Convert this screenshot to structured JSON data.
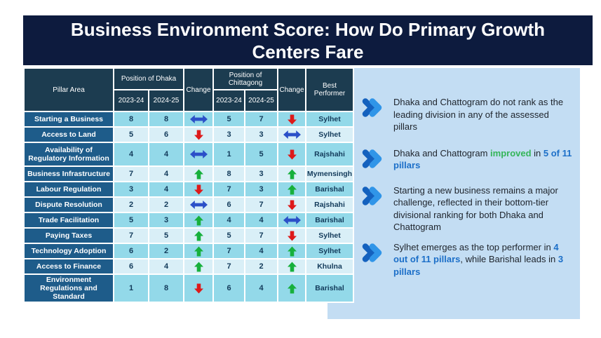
{
  "slide": {
    "title": "Business Environment Score: How Do Primary Growth Centers Fare"
  },
  "table": {
    "headers": {
      "pillar_area": "Pillar Area",
      "dhaka_group": "Position of Dhaka",
      "chittagong_group": "Position of Chittagong",
      "change": "Change",
      "best_performer": "Best Performer",
      "year_1": "2023-24",
      "year_2": "2024-25"
    },
    "rows": [
      {
        "pillar": "Starting a Business",
        "dhaka_2023_24": "8",
        "dhaka_2024_25": "8",
        "dhaka_change": "same",
        "chittagong_2023_24": "5",
        "chittagong_2024_25": "7",
        "chittagong_change": "down",
        "best_performer": "Sylhet"
      },
      {
        "pillar": "Access to Land",
        "dhaka_2023_24": "5",
        "dhaka_2024_25": "6",
        "dhaka_change": "down",
        "chittagong_2023_24": "3",
        "chittagong_2024_25": "3",
        "chittagong_change": "same",
        "best_performer": "Sylhet"
      },
      {
        "pillar": "Availability of Regulatory Information",
        "dhaka_2023_24": "4",
        "dhaka_2024_25": "4",
        "dhaka_change": "same",
        "chittagong_2023_24": "1",
        "chittagong_2024_25": "5",
        "chittagong_change": "down",
        "best_performer": "Rajshahi"
      },
      {
        "pillar": "Business Infrastructure",
        "dhaka_2023_24": "7",
        "dhaka_2024_25": "4",
        "dhaka_change": "up",
        "chittagong_2023_24": "8",
        "chittagong_2024_25": "3",
        "chittagong_change": "up",
        "best_performer": "Mymensingh"
      },
      {
        "pillar": "Labour Regulation",
        "dhaka_2023_24": "3",
        "dhaka_2024_25": "4",
        "dhaka_change": "down",
        "chittagong_2023_24": "7",
        "chittagong_2024_25": "3",
        "chittagong_change": "up",
        "best_performer": "Barishal"
      },
      {
        "pillar": "Dispute Resolution",
        "dhaka_2023_24": "2",
        "dhaka_2024_25": "2",
        "dhaka_change": "same",
        "chittagong_2023_24": "6",
        "chittagong_2024_25": "7",
        "chittagong_change": "down",
        "best_performer": "Rajshahi"
      },
      {
        "pillar": "Trade Facilitation",
        "dhaka_2023_24": "5",
        "dhaka_2024_25": "3",
        "dhaka_change": "up",
        "chittagong_2023_24": "4",
        "chittagong_2024_25": "4",
        "chittagong_change": "same",
        "best_performer": "Barishal"
      },
      {
        "pillar": "Paying Taxes",
        "dhaka_2023_24": "7",
        "dhaka_2024_25": "5",
        "dhaka_change": "up",
        "chittagong_2023_24": "5",
        "chittagong_2024_25": "7",
        "chittagong_change": "down",
        "best_performer": "Sylhet"
      },
      {
        "pillar": "Technology Adoption",
        "dhaka_2023_24": "6",
        "dhaka_2024_25": "2",
        "dhaka_change": "up",
        "chittagong_2023_24": "7",
        "chittagong_2024_25": "4",
        "chittagong_change": "up",
        "best_performer": "Sylhet"
      },
      {
        "pillar": "Access to Finance",
        "dhaka_2023_24": "6",
        "dhaka_2024_25": "4",
        "dhaka_change": "up",
        "chittagong_2023_24": "7",
        "chittagong_2024_25": "2",
        "chittagong_change": "up",
        "best_performer": "Khulna"
      },
      {
        "pillar": "Environment Regulations and Standard",
        "dhaka_2023_24": "1",
        "dhaka_2024_25": "8",
        "dhaka_change": "down",
        "chittagong_2023_24": "6",
        "chittagong_2024_25": "4",
        "chittagong_change": "up",
        "best_performer": "Barishal"
      }
    ]
  },
  "insights": [
    {
      "segments": [
        {
          "text": "Dhaka and Chattogram do not rank as the leading division in any of the assessed pillars",
          "style": "normal"
        }
      ]
    },
    {
      "segments": [
        {
          "text": "Dhaka and Chattogram ",
          "style": "normal"
        },
        {
          "text": "improved",
          "style": "green"
        },
        {
          "text": " in ",
          "style": "normal"
        },
        {
          "text": "5 of 11 pillars",
          "style": "blue"
        }
      ]
    },
    {
      "segments": [
        {
          "text": "Starting a new business remains a major challenge, reflected in their bottom-tier divisional ranking for both Dhaka and Chattogram",
          "style": "normal"
        }
      ]
    },
    {
      "segments": [
        {
          "text": "Sylhet emerges as the top performer in ",
          "style": "normal"
        },
        {
          "text": "4 out of 11 pillars",
          "style": "blue"
        },
        {
          "text": ", while Barishal leads in ",
          "style": "normal"
        },
        {
          "text": "3 pillars",
          "style": "blue"
        }
      ]
    }
  ],
  "colors": {
    "title_bar_bg": "#0d1b3e",
    "header_bg": "#1c3c50",
    "pillar_col_bg": "#1e5c8a",
    "row_odd_bg": "#93d9e9",
    "row_even_bg": "#d9eff7",
    "panel_bg": "#c3ddf3",
    "arrow_up": "#17b03c",
    "arrow_down": "#dd1a1a",
    "arrow_same": "#2b50c8",
    "chevron_dark": "#1461be",
    "chevron_light": "#3095e8",
    "text_green": "#35b559",
    "text_blue": "#1c6fc8"
  }
}
